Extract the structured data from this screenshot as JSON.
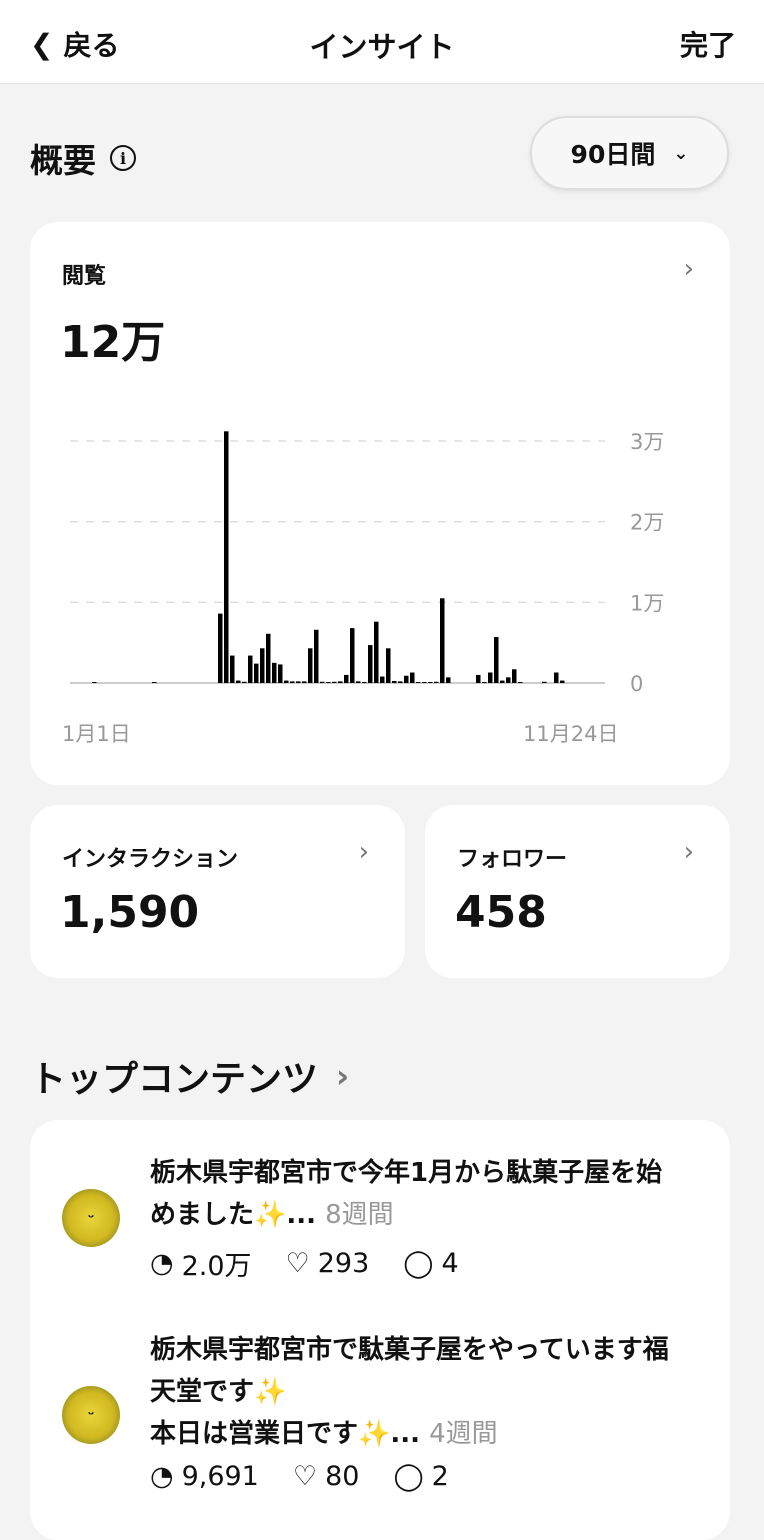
{
  "header": {
    "back": "戻る",
    "title": "インサイト",
    "done": "完了"
  },
  "overview": {
    "title": "概要",
    "range": "90日間"
  },
  "views": {
    "label": "閲覧",
    "value": "12万"
  },
  "chart_data": {
    "type": "bar",
    "x_start_label": "1月1日",
    "x_end_label": "11月24日",
    "yticks": [
      {
        "v": 0,
        "label": "0"
      },
      {
        "v": 10000,
        "label": "1万"
      },
      {
        "v": 20000,
        "label": "2万"
      },
      {
        "v": 30000,
        "label": "3万"
      }
    ],
    "ylim": [
      0,
      30000
    ],
    "grid": true,
    "values": [
      0,
      0,
      0,
      0,
      100,
      0,
      0,
      0,
      0,
      0,
      0,
      0,
      0,
      0,
      80,
      0,
      0,
      0,
      0,
      0,
      0,
      0,
      0,
      0,
      0,
      8600,
      31200,
      3400,
      300,
      150,
      3400,
      2400,
      4300,
      6100,
      2500,
      2300,
      300,
      200,
      200,
      200,
      4300,
      6600,
      150,
      100,
      150,
      200,
      1000,
      6800,
      200,
      80,
      4700,
      7600,
      800,
      4300,
      250,
      200,
      900,
      1300,
      50,
      100,
      50,
      150,
      10500,
      700,
      0,
      0,
      0,
      0,
      1000,
      50,
      1300,
      5700,
      300,
      700,
      1700,
      100,
      0,
      0,
      0,
      150,
      0,
      1300,
      300
    ],
    "color": "#000000"
  },
  "interactions": {
    "label": "インタラクション",
    "value": "1,590"
  },
  "followers": {
    "label": "フォロワー",
    "value": "458"
  },
  "top": {
    "title": "トップコンテンツ",
    "posts": [
      {
        "line1": "栃木県宇都宮市で今年1月から駄菓子屋を始",
        "line2": "めました",
        "spark": "✨",
        "ellipsis": "...",
        "age": "8週間",
        "views": "2.0万",
        "likes": "293",
        "comments": "4"
      },
      {
        "line1": "栃木県宇都宮市で駄菓子屋をやっています福",
        "line2": "天堂です",
        "spark": "✨",
        "line3": "本日は営業日です",
        "ellipsis": "...",
        "age": "4週間",
        "views": "9,691",
        "likes": "80",
        "comments": "2"
      }
    ]
  }
}
